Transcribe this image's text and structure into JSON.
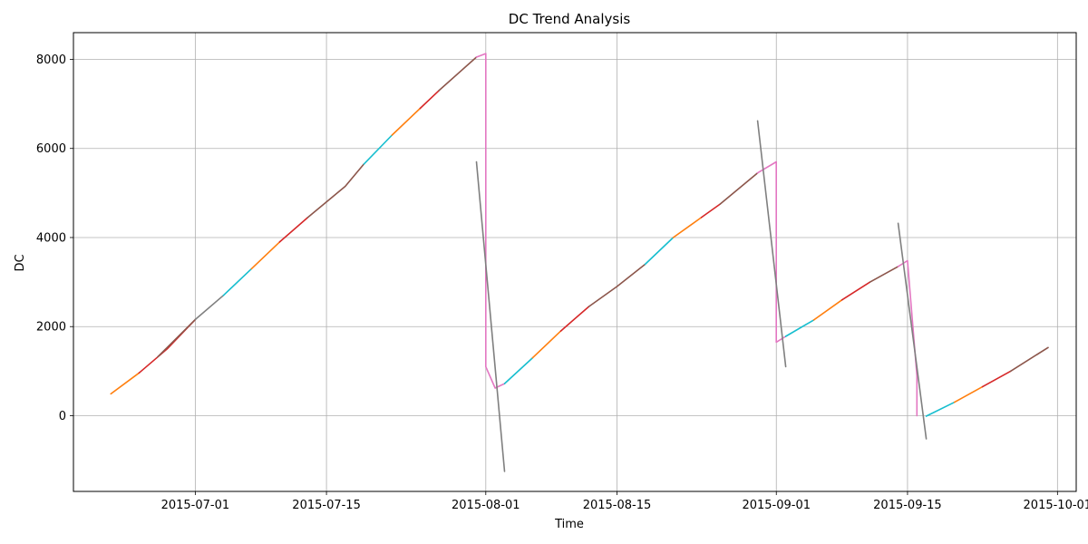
{
  "chart_data": {
    "type": "line",
    "title": "DC Trend Analysis",
    "xlabel": "Time",
    "ylabel": "DC",
    "xlim": [
      "2015-06-18",
      "2015-10-03"
    ],
    "ylim": [
      -1700,
      8600
    ],
    "grid": true,
    "x_ticks": [
      "2015-07-01",
      "2015-07-15",
      "2015-08-01",
      "2015-08-15",
      "2015-09-01",
      "2015-09-15",
      "2015-10-01"
    ],
    "y_ticks": [
      0,
      2000,
      4000,
      6000,
      8000
    ],
    "series": [
      {
        "color": "#ff7f0e",
        "points": [
          [
            "2015-06-22",
            490
          ],
          [
            "2015-06-25",
            960
          ]
        ]
      },
      {
        "color": "#d62728",
        "points": [
          [
            "2015-06-25",
            960
          ],
          [
            "2015-06-28",
            1500
          ],
          [
            "2015-07-01",
            2160
          ]
        ]
      },
      {
        "color": "#8c564b",
        "points": [
          [
            "2015-06-27",
            1320
          ],
          [
            "2015-07-01",
            2160
          ]
        ]
      },
      {
        "color": "#7f7f7f",
        "points": [
          [
            "2015-07-01",
            2160
          ],
          [
            "2015-07-04",
            2700
          ]
        ]
      },
      {
        "color": "#17becf",
        "points": [
          [
            "2015-07-04",
            2700
          ],
          [
            "2015-07-07",
            3300
          ]
        ]
      },
      {
        "color": "#ff7f0e",
        "points": [
          [
            "2015-07-07",
            3300
          ],
          [
            "2015-07-10",
            3900
          ]
        ]
      },
      {
        "color": "#d62728",
        "points": [
          [
            "2015-07-10",
            3900
          ],
          [
            "2015-07-13",
            4450
          ]
        ]
      },
      {
        "color": "#8c564b",
        "points": [
          [
            "2015-07-13",
            4450
          ],
          [
            "2015-07-17",
            5150
          ],
          [
            "2015-07-19",
            5650
          ]
        ]
      },
      {
        "color": "#17becf",
        "points": [
          [
            "2015-07-19",
            5650
          ],
          [
            "2015-07-22",
            6300
          ]
        ]
      },
      {
        "color": "#ff7f0e",
        "points": [
          [
            "2015-07-22",
            6300
          ],
          [
            "2015-07-25",
            6900
          ]
        ]
      },
      {
        "color": "#d62728",
        "points": [
          [
            "2015-07-25",
            6900
          ],
          [
            "2015-07-27",
            7300
          ]
        ]
      },
      {
        "color": "#8c564b",
        "points": [
          [
            "2015-07-27",
            7300
          ],
          [
            "2015-07-31",
            8050
          ]
        ]
      },
      {
        "color": "#e377c2",
        "points": [
          [
            "2015-07-31",
            8050
          ],
          [
            "2015-08-01",
            8130
          ],
          [
            "2015-08-01",
            1500
          ],
          [
            "2015-08-01",
            1100
          ],
          [
            "2015-08-02",
            620
          ],
          [
            "2015-08-03",
            720
          ]
        ]
      },
      {
        "color": "#7f7f7f",
        "points": [
          [
            "2015-07-31",
            5700
          ],
          [
            "2015-08-03",
            -1250
          ]
        ]
      },
      {
        "color": "#17becf",
        "points": [
          [
            "2015-08-03",
            720
          ],
          [
            "2015-08-06",
            1300
          ]
        ]
      },
      {
        "color": "#ff7f0e",
        "points": [
          [
            "2015-08-06",
            1300
          ],
          [
            "2015-08-09",
            1900
          ]
        ]
      },
      {
        "color": "#d62728",
        "points": [
          [
            "2015-08-09",
            1900
          ],
          [
            "2015-08-12",
            2450
          ]
        ]
      },
      {
        "color": "#8c564b",
        "points": [
          [
            "2015-08-12",
            2450
          ],
          [
            "2015-08-15",
            2900
          ],
          [
            "2015-08-18",
            3400
          ]
        ]
      },
      {
        "color": "#17becf",
        "points": [
          [
            "2015-08-18",
            3400
          ],
          [
            "2015-08-21",
            4000
          ]
        ]
      },
      {
        "color": "#ff7f0e",
        "points": [
          [
            "2015-08-21",
            4000
          ],
          [
            "2015-08-24",
            4450
          ]
        ]
      },
      {
        "color": "#d62728",
        "points": [
          [
            "2015-08-24",
            4450
          ],
          [
            "2015-08-26",
            4750
          ]
        ]
      },
      {
        "color": "#8c564b",
        "points": [
          [
            "2015-08-26",
            4750
          ],
          [
            "2015-08-30",
            5450
          ]
        ]
      },
      {
        "color": "#e377c2",
        "points": [
          [
            "2015-08-30",
            5450
          ],
          [
            "2015-09-01",
            5700
          ],
          [
            "2015-09-01",
            1650
          ],
          [
            "2015-09-02",
            1780
          ]
        ]
      },
      {
        "color": "#7f7f7f",
        "points": [
          [
            "2015-08-30",
            6620
          ],
          [
            "2015-09-02",
            1100
          ]
        ]
      },
      {
        "color": "#17becf",
        "points": [
          [
            "2015-09-02",
            1780
          ],
          [
            "2015-09-05",
            2150
          ]
        ]
      },
      {
        "color": "#ff7f0e",
        "points": [
          [
            "2015-09-05",
            2150
          ],
          [
            "2015-09-08",
            2600
          ]
        ]
      },
      {
        "color": "#d62728",
        "points": [
          [
            "2015-09-08",
            2600
          ],
          [
            "2015-09-11",
            3000
          ]
        ]
      },
      {
        "color": "#8c564b",
        "points": [
          [
            "2015-09-11",
            3000
          ],
          [
            "2015-09-14",
            3350
          ]
        ]
      },
      {
        "color": "#e377c2",
        "points": [
          [
            "2015-09-14",
            3350
          ],
          [
            "2015-09-15",
            3480
          ],
          [
            "2015-09-16",
            900
          ],
          [
            "2015-09-16",
            500
          ],
          [
            "2015-09-16",
            0
          ]
        ]
      },
      {
        "color": "#7f7f7f",
        "points": [
          [
            "2015-09-14",
            4320
          ],
          [
            "2015-09-17",
            -520
          ]
        ]
      },
      {
        "color": "#17becf",
        "points": [
          [
            "2015-09-17",
            -10
          ],
          [
            "2015-09-20",
            300
          ]
        ]
      },
      {
        "color": "#ff7f0e",
        "points": [
          [
            "2015-09-20",
            300
          ],
          [
            "2015-09-23",
            650
          ]
        ]
      },
      {
        "color": "#d62728",
        "points": [
          [
            "2015-09-23",
            650
          ],
          [
            "2015-09-26",
            1000
          ]
        ]
      },
      {
        "color": "#8c564b",
        "points": [
          [
            "2015-09-26",
            1000
          ],
          [
            "2015-09-30",
            1530
          ]
        ]
      }
    ]
  }
}
